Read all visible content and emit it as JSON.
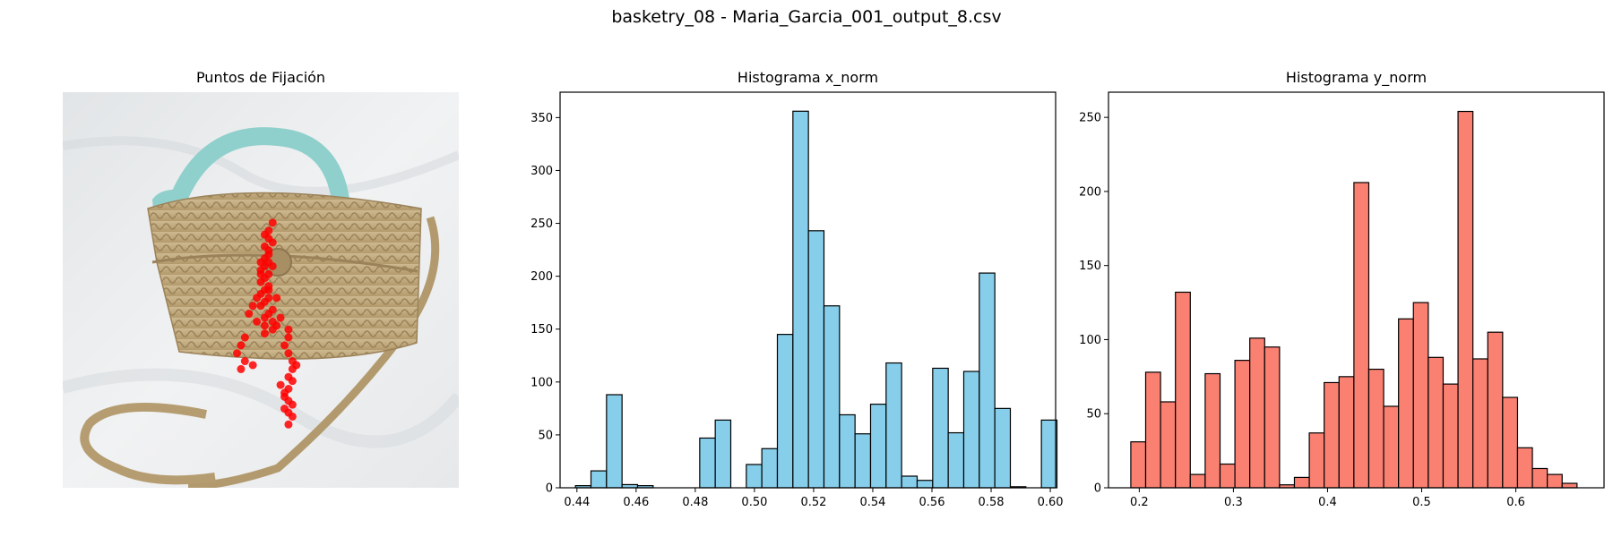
{
  "figure": {
    "suptitle": "basketry_08 - Maria_Garcia_001_output_8.csv"
  },
  "left_panel": {
    "title": "Puntos de Fijación",
    "fixation_color": "#ff0000",
    "fixation_points": [
      [
        0.53,
        0.33
      ],
      [
        0.52,
        0.35
      ],
      [
        0.52,
        0.37
      ],
      [
        0.51,
        0.39
      ],
      [
        0.52,
        0.4
      ],
      [
        0.51,
        0.42
      ],
      [
        0.52,
        0.43
      ],
      [
        0.51,
        0.44
      ],
      [
        0.5,
        0.45
      ],
      [
        0.52,
        0.46
      ],
      [
        0.51,
        0.47
      ],
      [
        0.5,
        0.48
      ],
      [
        0.52,
        0.49
      ],
      [
        0.51,
        0.5
      ],
      [
        0.5,
        0.51
      ],
      [
        0.52,
        0.52
      ],
      [
        0.51,
        0.53
      ],
      [
        0.5,
        0.54
      ],
      [
        0.53,
        0.55
      ],
      [
        0.52,
        0.56
      ],
      [
        0.51,
        0.57
      ],
      [
        0.49,
        0.58
      ],
      [
        0.47,
        0.56
      ],
      [
        0.48,
        0.54
      ],
      [
        0.55,
        0.57
      ],
      [
        0.54,
        0.59
      ],
      [
        0.51,
        0.59
      ],
      [
        0.53,
        0.6
      ],
      [
        0.57,
        0.6
      ],
      [
        0.57,
        0.62
      ],
      [
        0.56,
        0.64
      ],
      [
        0.57,
        0.66
      ],
      [
        0.46,
        0.62
      ],
      [
        0.45,
        0.64
      ],
      [
        0.44,
        0.66
      ],
      [
        0.46,
        0.68
      ],
      [
        0.48,
        0.69
      ],
      [
        0.45,
        0.7
      ],
      [
        0.58,
        0.68
      ],
      [
        0.59,
        0.69
      ],
      [
        0.58,
        0.7
      ],
      [
        0.57,
        0.72
      ],
      [
        0.58,
        0.73
      ],
      [
        0.57,
        0.75
      ],
      [
        0.56,
        0.77
      ],
      [
        0.57,
        0.78
      ],
      [
        0.58,
        0.79
      ],
      [
        0.56,
        0.8
      ],
      [
        0.57,
        0.81
      ],
      [
        0.58,
        0.82
      ],
      [
        0.57,
        0.84
      ],
      [
        0.56,
        0.76
      ],
      [
        0.55,
        0.74
      ],
      [
        0.5,
        0.46
      ],
      [
        0.53,
        0.44
      ],
      [
        0.52,
        0.41
      ],
      [
        0.51,
        0.36
      ],
      [
        0.53,
        0.38
      ],
      [
        0.5,
        0.43
      ],
      [
        0.52,
        0.5
      ],
      [
        0.54,
        0.52
      ],
      [
        0.49,
        0.52
      ],
      [
        0.53,
        0.58
      ],
      [
        0.51,
        0.61
      ]
    ]
  },
  "chart_data": [
    {
      "type": "bar",
      "title": "Histograma x_norm",
      "xlabel": "",
      "ylabel": "",
      "bin_start": 0.4395,
      "bin_width": 0.00525,
      "values": [
        2,
        16,
        88,
        3,
        2,
        0,
        0,
        0,
        47,
        64,
        0,
        22,
        37,
        145,
        356,
        243,
        172,
        69,
        51,
        79,
        118,
        11,
        7,
        113,
        52,
        110,
        203,
        75,
        1,
        0,
        64
      ],
      "xticks": [
        0.44,
        0.46,
        0.48,
        0.5,
        0.52,
        0.54,
        0.56,
        0.58,
        0.6
      ],
      "xtick_labels": [
        "0.44",
        "0.46",
        "0.48",
        "0.50",
        "0.52",
        "0.54",
        "0.56",
        "0.58",
        "0.60"
      ],
      "yticks": [
        0,
        50,
        100,
        150,
        200,
        250,
        300,
        350
      ],
      "xlim": [
        0.4343,
        0.6018
      ],
      "ylim": [
        0,
        374
      ],
      "color": "#87ceeb",
      "edge_color": "#000000"
    },
    {
      "type": "bar",
      "title": "Histograma y_norm",
      "xlabel": "",
      "ylabel": "",
      "bin_start": 0.191,
      "bin_width": 0.0158,
      "values": [
        31,
        78,
        58,
        132,
        9,
        77,
        16,
        86,
        101,
        95,
        2,
        7,
        37,
        71,
        75,
        206,
        80,
        55,
        114,
        125,
        88,
        70,
        254,
        87,
        105,
        61,
        27,
        13,
        9,
        3
      ],
      "xticks": [
        0.2,
        0.3,
        0.4,
        0.5,
        0.6
      ],
      "xtick_labels": [
        "0.2",
        "0.3",
        "0.4",
        "0.5",
        "0.6"
      ],
      "yticks": [
        0,
        50,
        100,
        150,
        200,
        250
      ],
      "xlim": [
        0.1673,
        0.6937
      ],
      "ylim": [
        0,
        267
      ],
      "color": "#fa8072",
      "edge_color": "#000000"
    }
  ]
}
